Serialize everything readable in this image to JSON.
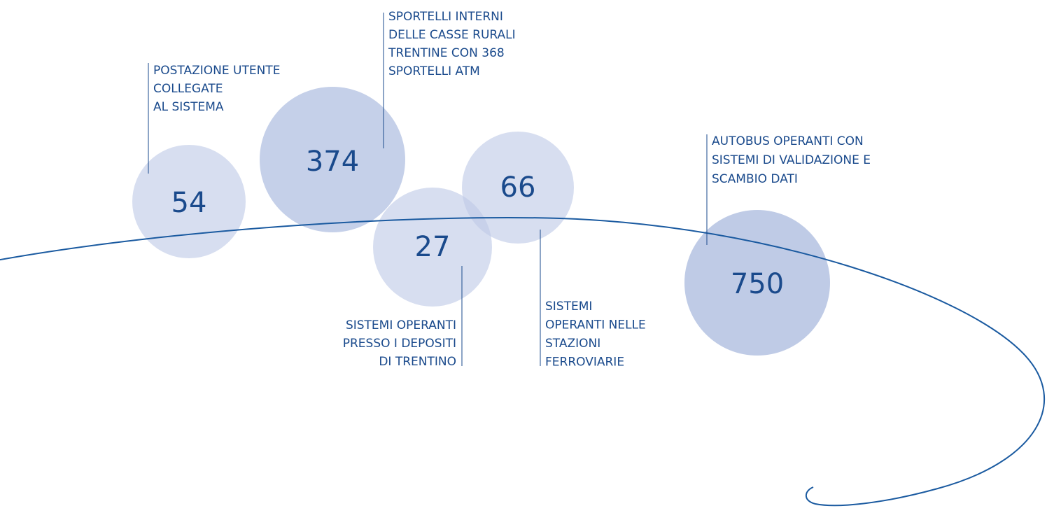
{
  "items": [
    {
      "number": "54",
      "label": [
        "POSTAZIONE UTENTE",
        "COLLEGATE",
        "AL SISTEMA"
      ]
    },
    {
      "number": "374",
      "label": [
        "SPORTELLI INTERNI",
        "DELLE CASSE RURALI",
        "TRENTINE CON 368",
        "SPORTELLI ATM"
      ]
    },
    {
      "number": "27",
      "label": [
        "SISTEMI OPERANTI",
        "PRESSO I DEPOSITI",
        "DI TRENTINO"
      ]
    },
    {
      "number": "66",
      "label": [
        "SISTEMI",
        "OPERANTI NELLE",
        "STAZIONI",
        "FERROVIARIE"
      ]
    },
    {
      "number": "750",
      "label": [
        "AUTOBUS OPERANTI CON",
        "SISTEMI DI VALIDAZIONE E",
        "SCAMBIO DATI"
      ]
    }
  ]
}
